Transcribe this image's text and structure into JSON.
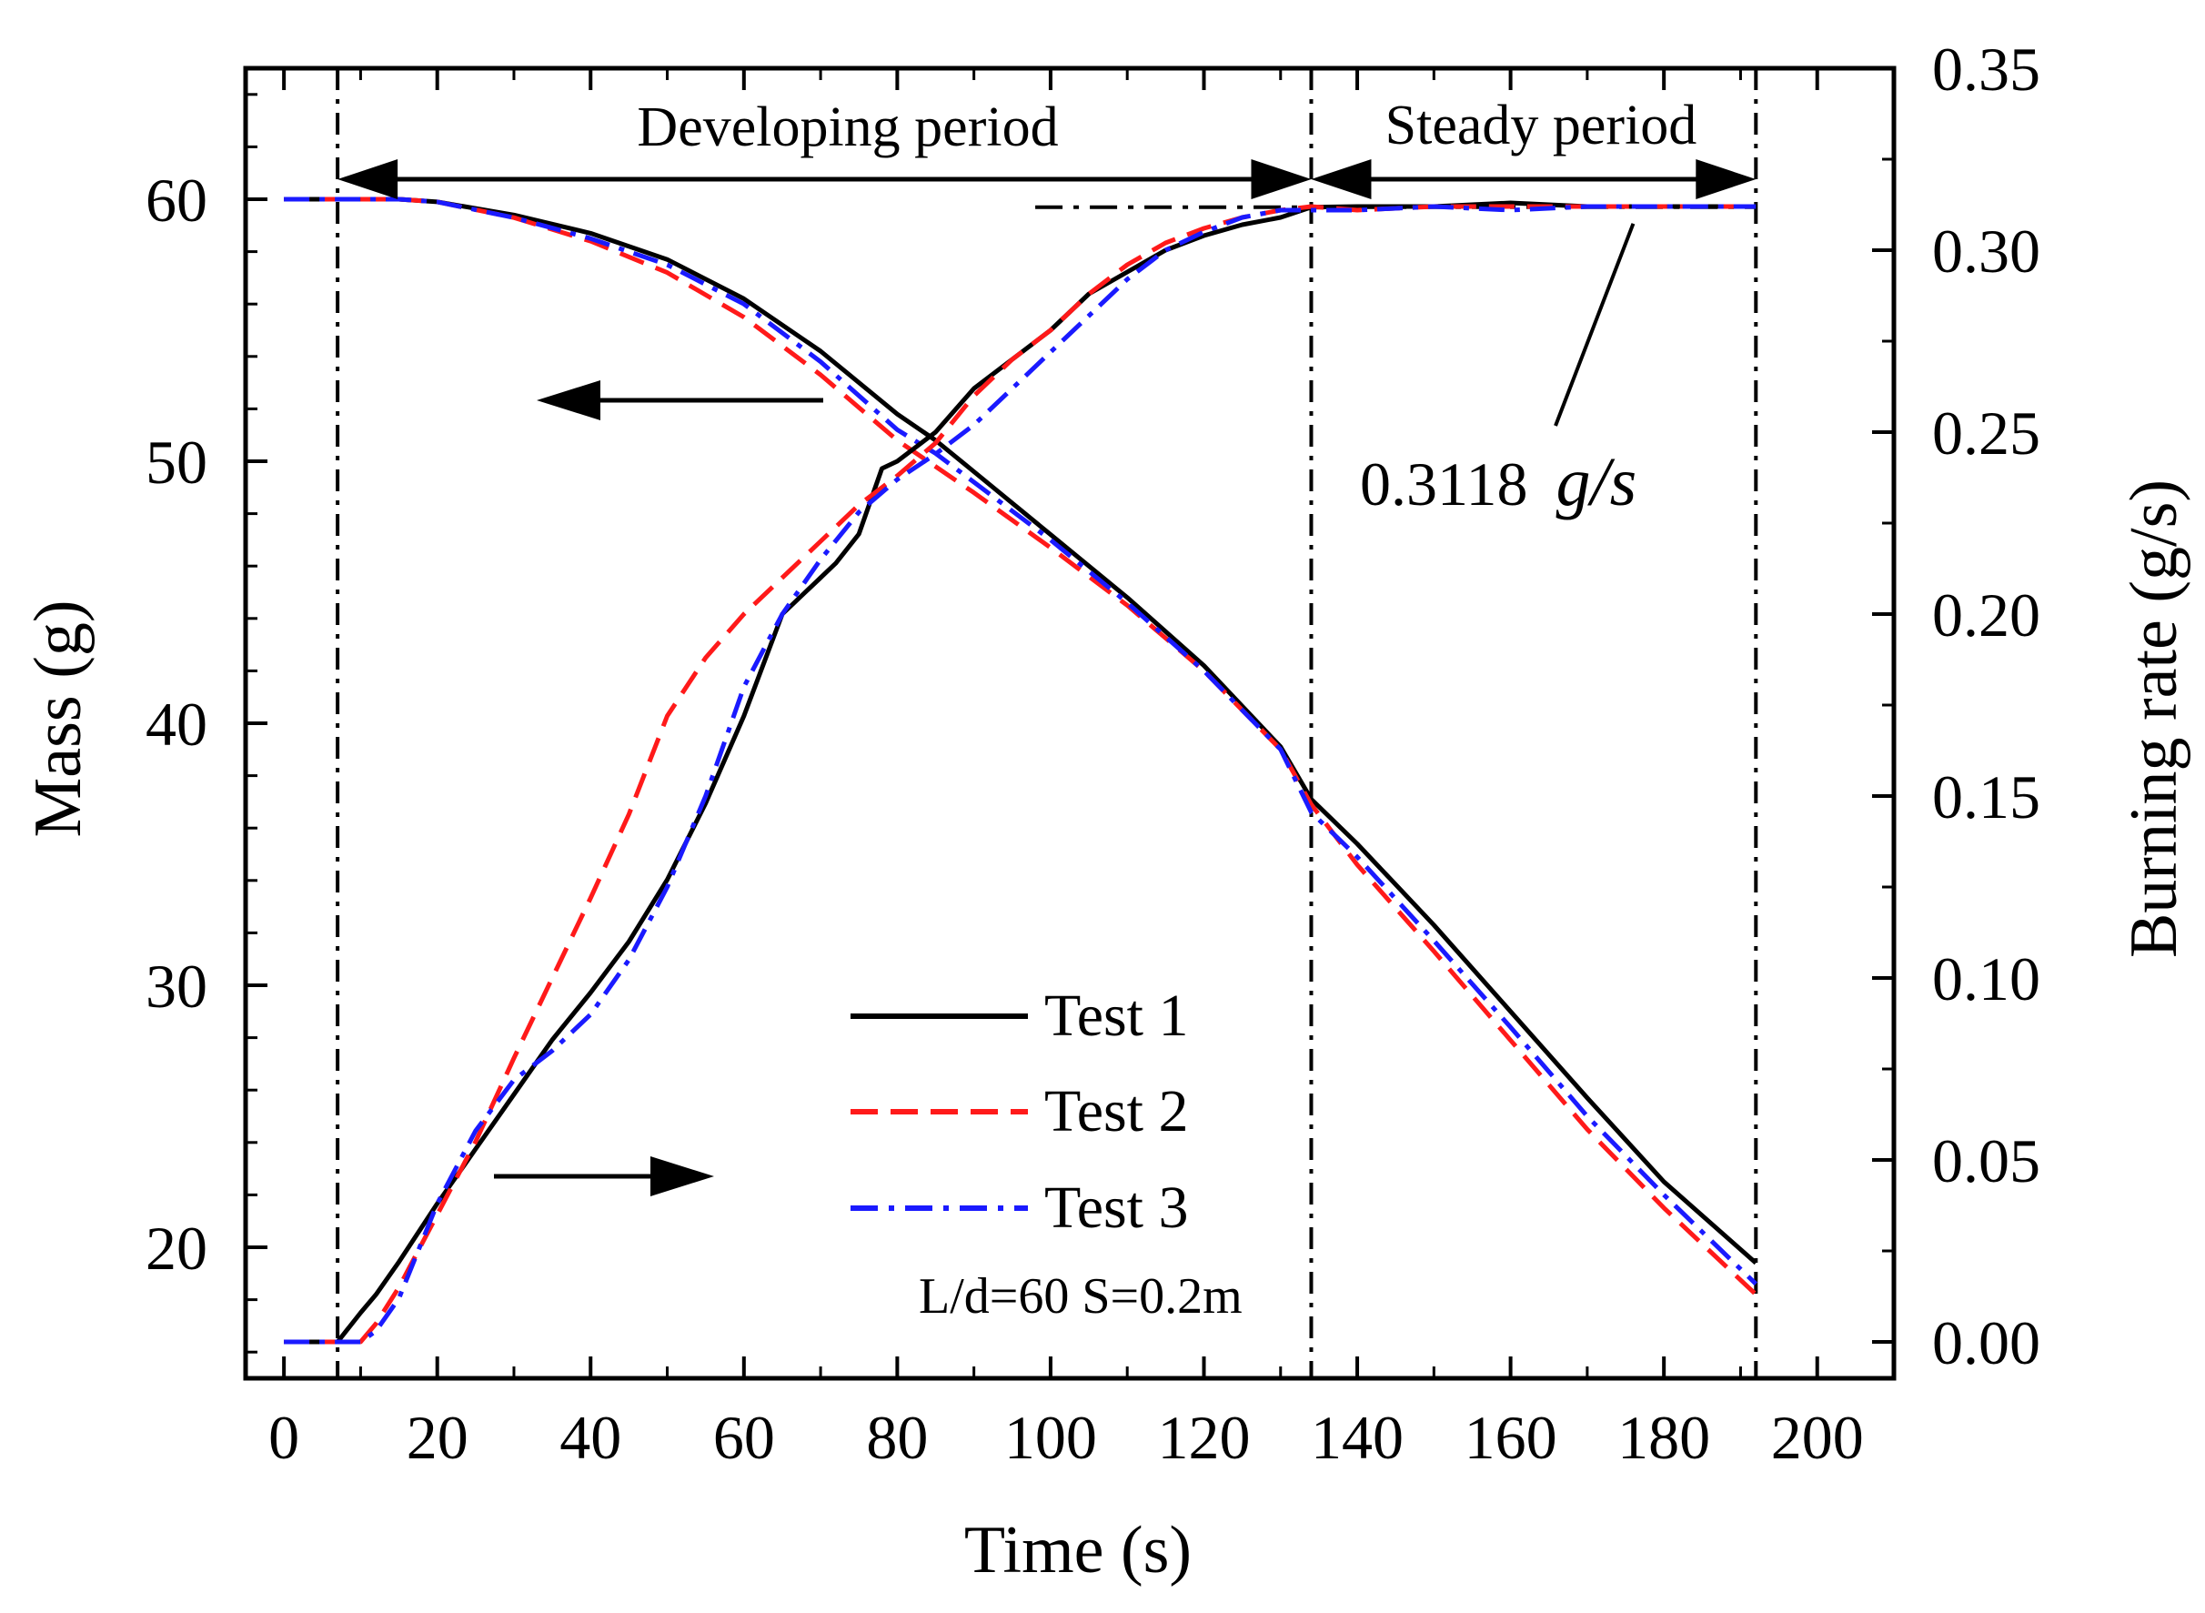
{
  "chart_data": {
    "type": "line",
    "title": "",
    "xlabel": "Time (s)",
    "ylabel_left": "Mass (g)",
    "ylabel_right": "Burning rate (g/s)",
    "xlim": [
      -5,
      210
    ],
    "ylim_left": [
      15,
      65
    ],
    "ylim_right": [
      -0.01,
      0.35
    ],
    "x_ticks": [
      "0",
      "20",
      "40",
      "60",
      "80",
      "100",
      "120",
      "140",
      "160",
      "180",
      "200"
    ],
    "y_left_ticks": [
      "20",
      "30",
      "40",
      "50",
      "60"
    ],
    "y_right_ticks": [
      "0.00",
      "0.05",
      "0.10",
      "0.15",
      "0.20",
      "0.25",
      "0.30",
      "0.35"
    ],
    "legend": {
      "position": "lower-center",
      "entries": [
        "Test 1",
        "Test 2",
        "Test 3"
      ]
    },
    "condition_label": "L/d=60 S=0.2m",
    "colors": {
      "test1": "#000000",
      "test2": "#ff1a1a",
      "test3": "#1a1aff"
    },
    "annotations": {
      "developing_label": "Developing period",
      "steady_label": "Steady period",
      "steady_rate_value": "0.3118",
      "steady_rate_unit": "g/s",
      "period_start_time": 7,
      "period_split_time": 134,
      "period_end_time": 192,
      "steady_rate": 0.3118
    },
    "series": [
      {
        "name": "Test 1",
        "axis": "left",
        "style": "solid",
        "color": "#000000",
        "x": [
          0,
          7,
          15,
          20,
          30,
          40,
          50,
          60,
          70,
          80,
          85,
          90,
          100,
          110,
          120,
          130,
          134,
          140,
          150,
          160,
          170,
          180,
          192
        ],
        "y": [
          60,
          60,
          60,
          59.9,
          59.4,
          58.7,
          57.7,
          56.2,
          54.2,
          51.8,
          50.8,
          49.6,
          47.2,
          44.8,
          42.2,
          39.1,
          37.1,
          35.4,
          32.3,
          29.0,
          25.7,
          22.5,
          19.4
        ]
      },
      {
        "name": "Test 2",
        "axis": "left",
        "style": "dashed",
        "color": "#ff1a1a",
        "x": [
          0,
          7,
          15,
          20,
          30,
          40,
          50,
          60,
          70,
          80,
          85,
          90,
          100,
          110,
          120,
          130,
          134,
          140,
          150,
          160,
          170,
          180,
          192
        ],
        "y": [
          60,
          60,
          60,
          59.9,
          59.3,
          58.4,
          57.2,
          55.5,
          53.3,
          50.8,
          49.8,
          48.8,
          46.7,
          44.5,
          42.0,
          39.0,
          36.9,
          34.6,
          31.3,
          27.9,
          24.5,
          21.5,
          18.2
        ]
      },
      {
        "name": "Test 3",
        "axis": "left",
        "style": "dashdot",
        "color": "#1a1aff",
        "x": [
          0,
          7,
          15,
          20,
          30,
          40,
          50,
          60,
          70,
          80,
          85,
          90,
          100,
          110,
          120,
          130,
          134,
          140,
          150,
          160,
          170,
          180,
          192
        ],
        "y": [
          60,
          60,
          60,
          59.9,
          59.3,
          58.5,
          57.5,
          56.0,
          53.8,
          51.2,
          50.3,
          49.2,
          47.0,
          44.6,
          42.0,
          39.0,
          36.6,
          34.9,
          31.7,
          28.4,
          25.0,
          22.0,
          18.6
        ]
      },
      {
        "name": "Test 1",
        "axis": "right",
        "style": "solid",
        "color": "#000000",
        "x": [
          0,
          7,
          10,
          12,
          15,
          20,
          25,
          30,
          35,
          40,
          45,
          50,
          55,
          60,
          65,
          68,
          70,
          72,
          75,
          78,
          80,
          85,
          90,
          95,
          100,
          105,
          110,
          115,
          120,
          125,
          130,
          134,
          140,
          150,
          160,
          170,
          180,
          192
        ],
        "y": [
          0,
          0,
          0.008,
          0.013,
          0.022,
          0.038,
          0.053,
          0.068,
          0.083,
          0.096,
          0.11,
          0.127,
          0.148,
          0.172,
          0.2,
          0.206,
          0.21,
          0.214,
          0.222,
          0.24,
          0.242,
          0.25,
          0.262,
          0.27,
          0.278,
          0.288,
          0.294,
          0.3,
          0.304,
          0.307,
          0.309,
          0.3118,
          0.312,
          0.312,
          0.313,
          0.312,
          0.312,
          0.312
        ]
      },
      {
        "name": "Test 2",
        "axis": "right",
        "style": "dashed",
        "color": "#ff1a1a",
        "x": [
          0,
          7,
          10,
          12,
          15,
          20,
          25,
          30,
          35,
          40,
          45,
          50,
          55,
          60,
          65,
          70,
          75,
          80,
          85,
          90,
          95,
          100,
          105,
          110,
          115,
          120,
          125,
          130,
          134,
          140,
          150,
          160,
          170,
          180,
          192
        ],
        "y": [
          0,
          0,
          0,
          0.005,
          0.015,
          0.035,
          0.055,
          0.078,
          0.1,
          0.122,
          0.145,
          0.172,
          0.188,
          0.2,
          0.21,
          0.22,
          0.23,
          0.238,
          0.247,
          0.26,
          0.27,
          0.278,
          0.288,
          0.296,
          0.302,
          0.306,
          0.309,
          0.311,
          0.312,
          0.311,
          0.312,
          0.312,
          0.312,
          0.312,
          0.312
        ]
      },
      {
        "name": "Test 3",
        "axis": "right",
        "style": "dashdot",
        "color": "#1a1aff",
        "x": [
          0,
          7,
          10,
          12,
          15,
          20,
          25,
          30,
          35,
          40,
          45,
          50,
          55,
          60,
          65,
          70,
          75,
          80,
          85,
          90,
          95,
          100,
          105,
          110,
          115,
          120,
          125,
          130,
          134,
          140,
          150,
          160,
          170,
          180,
          192
        ],
        "y": [
          0,
          0,
          0,
          0.003,
          0.012,
          0.038,
          0.058,
          0.072,
          0.08,
          0.09,
          0.105,
          0.125,
          0.15,
          0.18,
          0.2,
          0.215,
          0.228,
          0.237,
          0.244,
          0.252,
          0.262,
          0.272,
          0.282,
          0.292,
          0.3,
          0.305,
          0.309,
          0.311,
          0.311,
          0.311,
          0.312,
          0.311,
          0.312,
          0.312,
          0.312
        ]
      }
    ]
  }
}
